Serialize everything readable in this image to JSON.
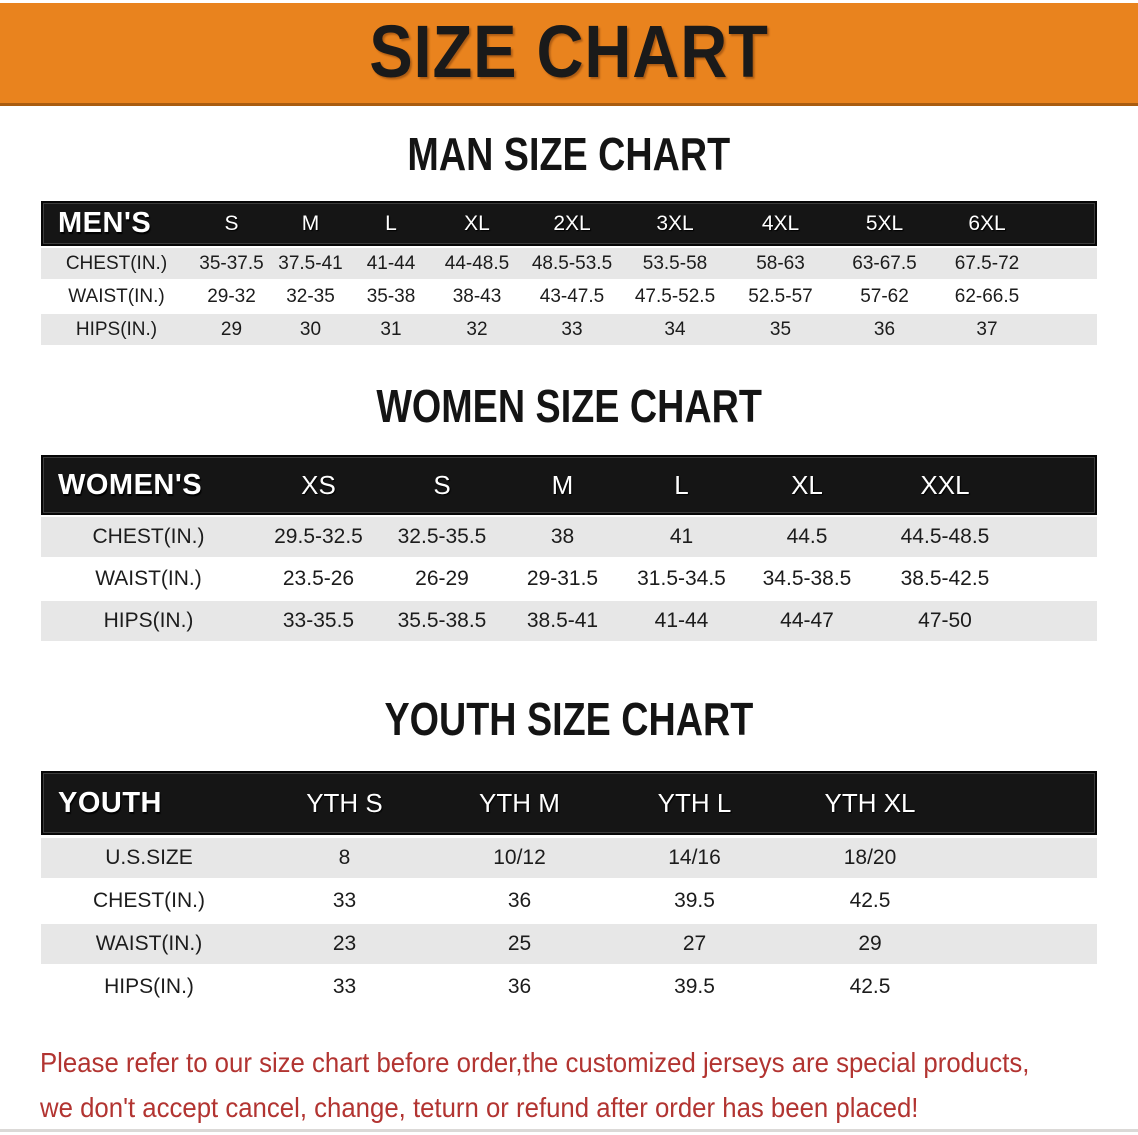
{
  "banner": {
    "title": "SIZE CHART"
  },
  "sections": [
    {
      "heading": "MAN SIZE CHART",
      "table": {
        "header_label": "MEN'S",
        "columns": [
          "S",
          "M",
          "L",
          "XL",
          "2XL",
          "3XL",
          "4XL",
          "5XL",
          "6XL"
        ],
        "rows": [
          {
            "label": "CHEST(IN.)",
            "shaded": true,
            "values": [
              "35-37.5",
              "37.5-41",
              "41-44",
              "44-48.5",
              "48.5-53.5",
              "53.5-58",
              "58-63",
              "63-67.5",
              "67.5-72"
            ]
          },
          {
            "label": "WAIST(IN.)",
            "shaded": false,
            "values": [
              "29-32",
              "32-35",
              "35-38",
              "38-43",
              "43-47.5",
              "47.5-52.5",
              "52.5-57",
              "57-62",
              "62-66.5"
            ]
          },
          {
            "label": "HIPS(IN.)",
            "shaded": true,
            "values": [
              "29",
              "30",
              "31",
              "32",
              "33",
              "34",
              "35",
              "36",
              "37"
            ]
          }
        ]
      }
    },
    {
      "heading": "WOMEN SIZE CHART",
      "table": {
        "header_label": "WOMEN'S",
        "columns": [
          "XS",
          "S",
          "M",
          "L",
          "XL",
          "XXL"
        ],
        "rows": [
          {
            "label": "CHEST(IN.)",
            "shaded": true,
            "values": [
              "29.5-32.5",
              "32.5-35.5",
              "38",
              "41",
              "44.5",
              "44.5-48.5"
            ]
          },
          {
            "label": "WAIST(IN.)",
            "shaded": false,
            "values": [
              "23.5-26",
              "26-29",
              "29-31.5",
              "31.5-34.5",
              "34.5-38.5",
              "38.5-42.5"
            ]
          },
          {
            "label": "HIPS(IN.)",
            "shaded": true,
            "values": [
              "33-35.5",
              "35.5-38.5",
              "38.5-41",
              "41-44",
              "44-47",
              "47-50"
            ]
          }
        ]
      }
    },
    {
      "heading": "YOUTH SIZE CHART",
      "table": {
        "header_label": "YOUTH",
        "columns": [
          "YTH S",
          "YTH M",
          "YTH L",
          "YTH XL"
        ],
        "rows": [
          {
            "label": "U.S.SIZE",
            "shaded": true,
            "values": [
              "8",
              "10/12",
              "14/16",
              "18/20"
            ]
          },
          {
            "label": "CHEST(IN.)",
            "shaded": false,
            "values": [
              "33",
              "36",
              "39.5",
              "42.5"
            ]
          },
          {
            "label": "WAIST(IN.)",
            "shaded": true,
            "values": [
              "23",
              "25",
              "27",
              "29"
            ]
          },
          {
            "label": "HIPS(IN.)",
            "shaded": false,
            "values": [
              "33",
              "36",
              "39.5",
              "42.5"
            ]
          }
        ]
      }
    }
  ],
  "note": {
    "line1": "Please refer to our size chart before order,the customized jerseys are special products,",
    "line2": "we don't accept cancel, change, teturn or refund after order has been placed!"
  },
  "colors": {
    "banner_bg": "#E9831E",
    "table_header_bg": "#151515",
    "shaded_row_bg": "#E7E7E7",
    "note_text": "#B23431"
  }
}
